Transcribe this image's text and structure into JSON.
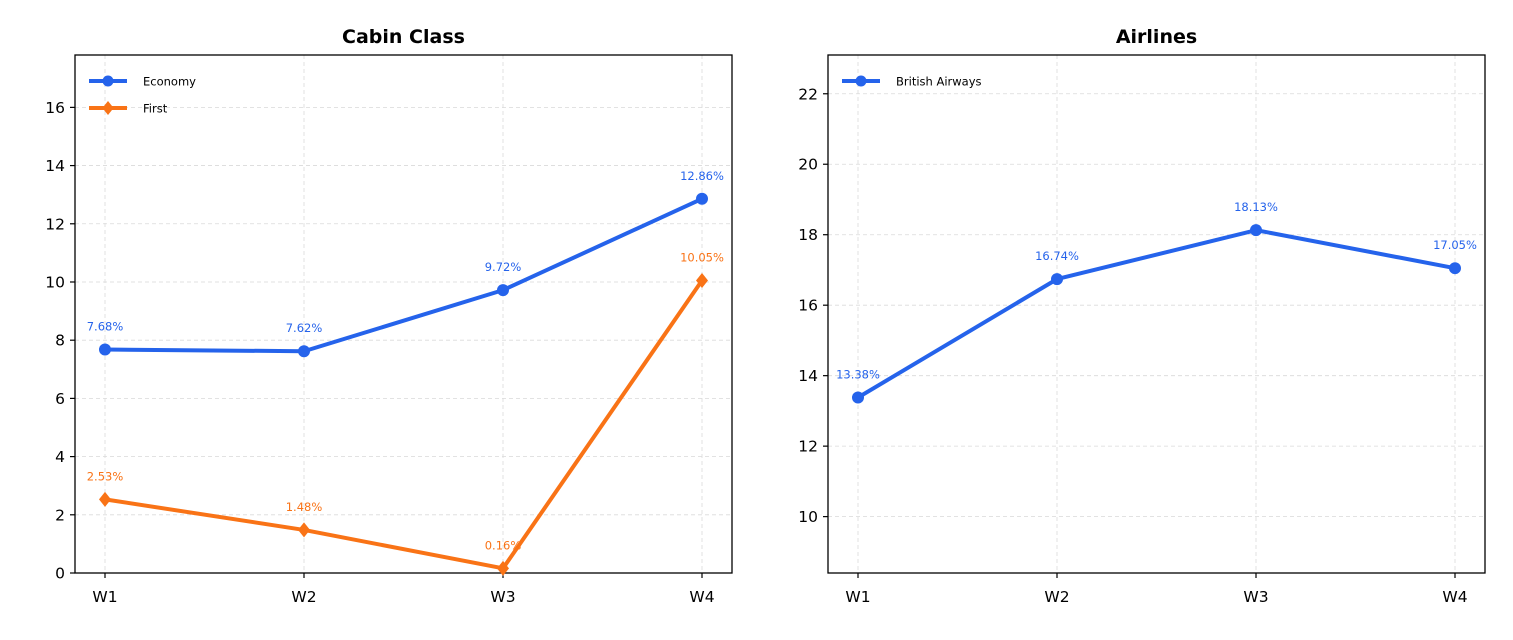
{
  "chart_data": [
    {
      "type": "line",
      "title": "Cabin Class",
      "categories": [
        "W1",
        "W2",
        "W3",
        "W4"
      ],
      "ylim": [
        0,
        17.8
      ],
      "yticks": [
        0,
        2,
        4,
        6,
        8,
        10,
        12,
        14,
        16
      ],
      "grid": true,
      "legend_position": "top-left",
      "series": [
        {
          "name": "Economy",
          "values": [
            7.68,
            7.62,
            9.72,
            12.86
          ],
          "labels": [
            "7.68%",
            "7.62%",
            "9.72%",
            "12.86%"
          ],
          "color": "#2563eb",
          "marker": "circle"
        },
        {
          "name": "First",
          "values": [
            2.53,
            1.48,
            0.16,
            10.05
          ],
          "labels": [
            "2.53%",
            "1.48%",
            "0.16%",
            "10.05%"
          ],
          "color": "#f97316",
          "marker": "diamond"
        }
      ]
    },
    {
      "type": "line",
      "title": "Airlines",
      "categories": [
        "W1",
        "W2",
        "W3",
        "W4"
      ],
      "ylim": [
        8.4,
        23.1
      ],
      "yticks": [
        10,
        12,
        14,
        16,
        18,
        20,
        22
      ],
      "grid": true,
      "legend_position": "top-left",
      "series": [
        {
          "name": "British Airways",
          "values": [
            13.38,
            16.74,
            18.13,
            17.05
          ],
          "labels": [
            "13.38%",
            "16.74%",
            "18.13%",
            "17.05%"
          ],
          "color": "#2563eb",
          "marker": "circle"
        }
      ]
    }
  ]
}
